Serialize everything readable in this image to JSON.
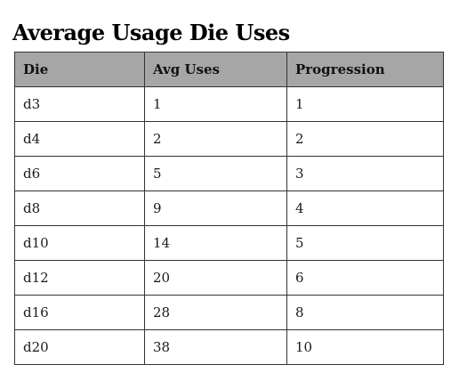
{
  "title": "Average Usage Die Uses",
  "table": {
    "columns": [
      "Die",
      "Avg Uses",
      "Progression"
    ],
    "rows": [
      [
        "d3",
        "1",
        "1"
      ],
      [
        "d4",
        "2",
        "2"
      ],
      [
        "d6",
        "5",
        "3"
      ],
      [
        "d8",
        "9",
        "4"
      ],
      [
        "d10",
        "14",
        "5"
      ],
      [
        "d12",
        "20",
        "6"
      ],
      [
        "d16",
        "28",
        "8"
      ],
      [
        "d20",
        "38",
        "10"
      ]
    ]
  }
}
